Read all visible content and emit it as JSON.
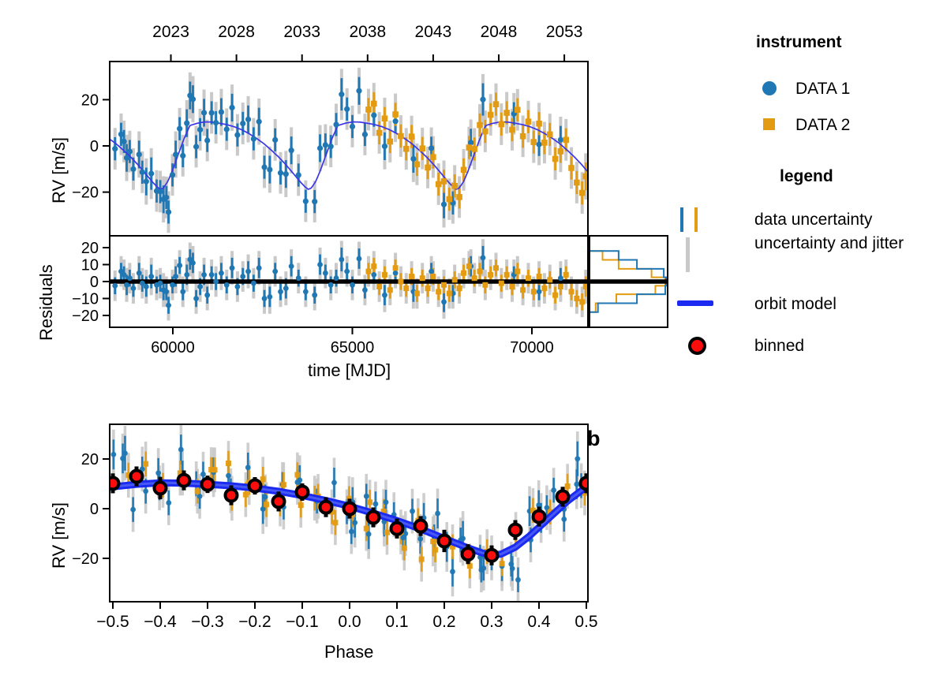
{
  "figure": {
    "panel_b_label": "b",
    "colors": {
      "data1": "#1f77b4",
      "data2": "#e39b12",
      "jitter_gray": "#c9c9c9",
      "model_thin": "#3c35e8",
      "model_thick": "#1b2af0",
      "model_thick_core": "#4e5df3",
      "binned_red": "#fb0d0e",
      "zero_line": "#000000"
    },
    "time_panel": {
      "ylabel": "RV [m/s]",
      "xlabel": "time [MJD]",
      "xticks": [
        60000,
        65000,
        70000
      ],
      "xtick_labels": [
        "60000",
        "65000",
        "70000"
      ],
      "yticks": [
        20,
        0,
        -20
      ],
      "ytick_labels": [
        "20",
        "0",
        "−20"
      ],
      "xlim": [
        58242,
        71560
      ],
      "ylim": [
        -39,
        36.5
      ]
    },
    "year_axis": {
      "labels": [
        "2023",
        "2028",
        "2033",
        "2038",
        "2043",
        "2048",
        "2053"
      ],
      "mjd": [
        59945.5,
        61771.75,
        63598.0,
        65424.25,
        67250.5,
        69076.75,
        70903.0
      ]
    },
    "residuals_panel": {
      "ylabel": "Residuals",
      "yticks": [
        20,
        10,
        0,
        -10,
        -20
      ],
      "ytick_labels": [
        "20",
        "10",
        "0",
        "−10",
        "−20"
      ],
      "ylim": [
        -27,
        27
      ]
    },
    "phase_panel": {
      "ylabel": "RV [m/s]",
      "xlabel": "Phase",
      "xticks": [
        -0.5,
        -0.4,
        -0.3,
        -0.2,
        -0.1,
        0.0,
        0.1,
        0.2,
        0.3,
        0.4,
        0.5
      ],
      "xtick_labels": [
        "−0.5",
        "−0.4",
        "−0.3",
        "−0.2",
        "−0.1",
        "0.0",
        "0.1",
        "0.2",
        "0.3",
        "0.4",
        "0.5"
      ],
      "yticks": [
        20,
        0,
        -20
      ],
      "ytick_labels": [
        "20",
        "0",
        "−20"
      ],
      "xlim": [
        -0.5,
        0.5
      ],
      "ylim": [
        -37.5,
        34
      ]
    }
  },
  "legend": {
    "instrument_title": "instrument",
    "data1_label": "DATA 1",
    "data2_label": "DATA 2",
    "legend_title": "legend",
    "data_uncertainty_label": "data uncertainty",
    "jitter_label": "uncertainty and jitter",
    "orbit_model_label": "orbit model",
    "binned_label": "binned"
  },
  "chart_data": {
    "type": "scatter",
    "panels": [
      "rv_vs_time",
      "residuals_vs_time",
      "residual_histogram",
      "rv_vs_phase"
    ],
    "orbit_model": {
      "period_days": 4120,
      "t_phase0_mjd": 58414,
      "phase_curve": {
        "phase": [
          -0.5,
          -0.45,
          -0.4,
          -0.35,
          -0.3,
          -0.25,
          -0.2,
          -0.15,
          -0.1,
          -0.05,
          0.0,
          0.05,
          0.1,
          0.15,
          0.2,
          0.25,
          0.28,
          0.3,
          0.32,
          0.35,
          0.38,
          0.42,
          0.46,
          0.5
        ],
        "rv": [
          8.8,
          9.8,
          10.4,
          10.3,
          9.8,
          9.2,
          8.3,
          7.0,
          5.3,
          3.3,
          1.0,
          -1.8,
          -4.8,
          -8.2,
          -12.0,
          -15.8,
          -17.8,
          -18.8,
          -18.3,
          -15.5,
          -11.0,
          -4.0,
          3.0,
          8.8
        ]
      }
    },
    "jitter_extra_ms": 4,
    "instruments": [
      {
        "name": "DATA 1",
        "marker": "circle",
        "color": "#1f77b4",
        "points_mjd_resid_err": [
          [
            58390,
            -2.5,
            5
          ],
          [
            58560,
            6,
            5
          ],
          [
            58640,
            4,
            5
          ],
          [
            58715,
            -2,
            6
          ],
          [
            58800,
            2,
            5
          ],
          [
            58900,
            -4,
            5
          ],
          [
            59060,
            5,
            6
          ],
          [
            59150,
            -1,
            5
          ],
          [
            59260,
            -3,
            6
          ],
          [
            59400,
            3,
            7
          ],
          [
            59550,
            -2,
            5
          ],
          [
            59650,
            -1,
            5
          ],
          [
            59740,
            -5,
            6
          ],
          [
            59820,
            -6,
            5
          ],
          [
            59880,
            -14,
            5
          ],
          [
            59990,
            -2,
            5
          ],
          [
            60080,
            3,
            6
          ],
          [
            60190,
            9.5,
            5
          ],
          [
            60280,
            -6,
            5
          ],
          [
            60390,
            4,
            6
          ],
          [
            60480,
            13,
            6
          ],
          [
            60560,
            11,
            6
          ],
          [
            60650,
            -10,
            5
          ],
          [
            60760,
            -3,
            5
          ],
          [
            60870,
            4,
            6
          ],
          [
            60960,
            -8,
            5
          ],
          [
            61080,
            4,
            5
          ],
          [
            61200,
            0,
            5
          ],
          [
            61350,
            5,
            6
          ],
          [
            61500,
            -2,
            5
          ],
          [
            61650,
            8,
            6
          ],
          [
            61800,
            -3,
            5
          ],
          [
            61950,
            3,
            5
          ],
          [
            62100,
            6,
            6
          ],
          [
            62250,
            -1,
            5
          ],
          [
            62400,
            8,
            6
          ],
          [
            62550,
            -10,
            5
          ],
          [
            62700,
            -9,
            6
          ],
          [
            62850,
            6,
            5
          ],
          [
            63000,
            -6,
            5
          ],
          [
            63150,
            -4,
            6
          ],
          [
            63300,
            9,
            6
          ],
          [
            63500,
            2,
            5
          ],
          [
            63700,
            -6,
            5
          ],
          [
            63950,
            -8,
            5
          ],
          [
            64100,
            10,
            6
          ],
          [
            64250,
            5,
            5
          ],
          [
            64400,
            -2,
            5
          ],
          [
            64550,
            2,
            5
          ],
          [
            64700,
            13,
            7
          ],
          [
            64850,
            6,
            5
          ],
          [
            65000,
            -2,
            5
          ],
          [
            65187,
            13.5,
            6
          ],
          [
            65350,
            -5,
            5
          ],
          [
            65600,
            4,
            5
          ],
          [
            65900,
            -8,
            6
          ],
          [
            66200,
            5,
            5
          ],
          [
            66700,
            -6,
            6
          ],
          [
            67200,
            6,
            5
          ],
          [
            67550,
            -12,
            6
          ],
          [
            67800,
            -7,
            5
          ],
          [
            68300,
            9,
            6
          ],
          [
            68637,
            14,
            7
          ],
          [
            69500,
            4,
            5
          ],
          [
            70200,
            -6,
            5
          ],
          [
            70800,
            2,
            6
          ]
        ]
      },
      {
        "name": "DATA 2",
        "marker": "square",
        "color": "#e39b12",
        "points_mjd_resid_err": [
          [
            65450,
            6,
            5
          ],
          [
            65600,
            9,
            5
          ],
          [
            65750,
            -3,
            5
          ],
          [
            65900,
            4,
            5
          ],
          [
            66050,
            -5,
            5
          ],
          [
            66200,
            8,
            5
          ],
          [
            66350,
            0,
            5
          ],
          [
            66500,
            -4,
            5
          ],
          [
            66650,
            3,
            5
          ],
          [
            66800,
            -7,
            5
          ],
          [
            66950,
            2,
            5
          ],
          [
            67100,
            -4,
            5
          ],
          [
            67250,
            3,
            5
          ],
          [
            67400,
            -6,
            5
          ],
          [
            67550,
            -2,
            5
          ],
          [
            67700,
            -7,
            5
          ],
          [
            67850,
            1,
            5
          ],
          [
            67980,
            -4,
            5
          ],
          [
            68100,
            5,
            5
          ],
          [
            68250,
            9,
            5
          ],
          [
            68400,
            2,
            5
          ],
          [
            68550,
            6,
            5
          ],
          [
            68700,
            -2,
            5
          ],
          [
            68850,
            4,
            5
          ],
          [
            69000,
            8,
            5
          ],
          [
            69150,
            -1,
            5
          ],
          [
            69300,
            4,
            5
          ],
          [
            69450,
            -3,
            5
          ],
          [
            69600,
            6,
            5
          ],
          [
            69750,
            -5,
            5
          ],
          [
            69900,
            2,
            5
          ],
          [
            70050,
            -6,
            5
          ],
          [
            70200,
            3,
            5
          ],
          [
            70350,
            -4,
            5
          ],
          [
            70500,
            1,
            5
          ],
          [
            70650,
            -8,
            5
          ],
          [
            70800,
            -3,
            5
          ],
          [
            70950,
            4,
            5
          ],
          [
            71100,
            -6,
            5
          ],
          [
            71250,
            -10,
            5
          ],
          [
            71400,
            -12,
            5
          ],
          [
            71500,
            -3,
            6
          ]
        ]
      }
    ],
    "binned": {
      "color": "#fb0d0e",
      "points_phase_rv_err": [
        [
          -0.5,
          10.2,
          4
        ],
        [
          -0.45,
          13.0,
          4
        ],
        [
          -0.4,
          8.3,
          4.5
        ],
        [
          -0.35,
          11.4,
          4
        ],
        [
          -0.3,
          9.8,
          3.5
        ],
        [
          -0.25,
          5.4,
          4
        ],
        [
          -0.2,
          9.2,
          3.5
        ],
        [
          -0.15,
          2.9,
          4
        ],
        [
          -0.1,
          6.7,
          3.5
        ],
        [
          -0.05,
          0.6,
          4
        ],
        [
          0.0,
          0.0,
          4
        ],
        [
          0.05,
          -3.5,
          4
        ],
        [
          0.1,
          -8.0,
          4
        ],
        [
          0.15,
          -7.0,
          4
        ],
        [
          0.2,
          -13.0,
          4.5
        ],
        [
          0.25,
          -18.3,
          4
        ],
        [
          0.3,
          -18.8,
          4
        ],
        [
          0.35,
          -8.6,
          4
        ],
        [
          0.4,
          -3.2,
          4
        ],
        [
          0.45,
          4.8,
          4
        ],
        [
          0.5,
          10.2,
          4
        ]
      ]
    },
    "residual_histogram": {
      "orientation": "horizontal",
      "bin_edges_ms": [
        -18,
        -12.8,
        -7.5,
        -2.5,
        2.5,
        7.5,
        12.8,
        18
      ],
      "data1_count_fractions": [
        0.11,
        0.62,
        0.99,
        1.0,
        0.97,
        0.62,
        0.38
      ],
      "data2_count_fractions": [
        0.08,
        0.35,
        0.86,
        0.99,
        0.81,
        0.38,
        0.17
      ]
    }
  }
}
